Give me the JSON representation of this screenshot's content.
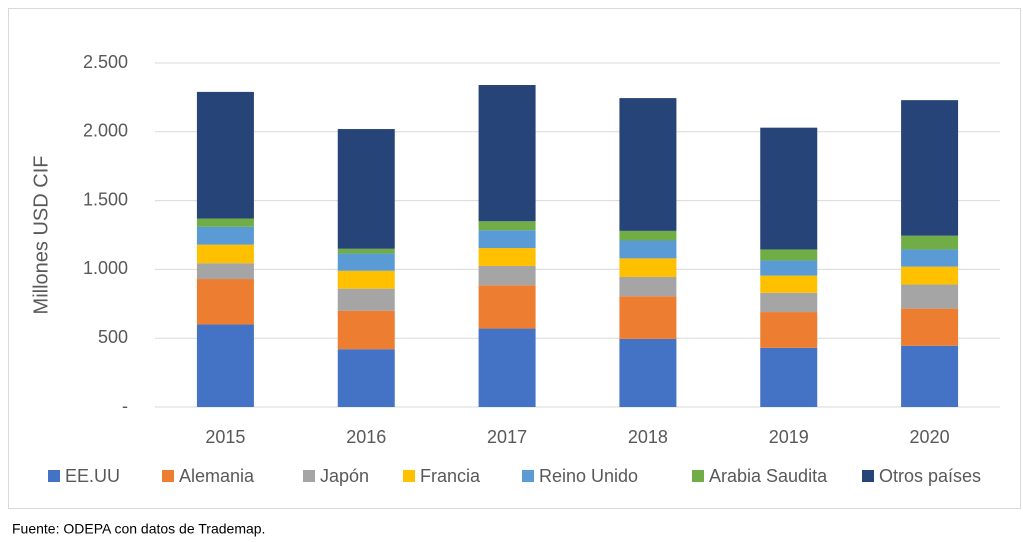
{
  "chart_data": {
    "type": "stacked_bar",
    "y_label": "Millones USD CIF",
    "categories": [
      "2015",
      "2016",
      "2017",
      "2018",
      "2019",
      "2020"
    ],
    "series": [
      {
        "name": "EE.UU",
        "color": "#4472c4",
        "values": [
          600,
          420,
          570,
          495,
          430,
          445
        ]
      },
      {
        "name": "Alemania",
        "color": "#ed7d31",
        "values": [
          330,
          280,
          315,
          310,
          260,
          270
        ]
      },
      {
        "name": "Japón",
        "color": "#a5a5a5",
        "values": [
          115,
          160,
          140,
          140,
          140,
          175
        ]
      },
      {
        "name": "Francia",
        "color": "#ffc000",
        "values": [
          135,
          130,
          130,
          135,
          125,
          130
        ]
      },
      {
        "name": "Reino Unido",
        "color": "#5b9bd5",
        "values": [
          130,
          125,
          130,
          130,
          110,
          125
        ]
      },
      {
        "name": "Arabia Saudita",
        "color": "#70ad47",
        "values": [
          60,
          35,
          65,
          70,
          80,
          100
        ]
      },
      {
        "name": "Otros países",
        "color": "#264478",
        "values": [
          920,
          870,
          990,
          965,
          885,
          985
        ]
      }
    ],
    "ylim": [
      0,
      2500
    ],
    "yticks": [
      {
        "value": 0,
        "label": "-"
      },
      500,
      {
        "value": 1000,
        "label": "1.000"
      },
      {
        "value": 1500,
        "label": "1.500"
      },
      {
        "value": 2000,
        "label": "2.000"
      },
      {
        "value": 2500,
        "label": "2.500"
      }
    ],
    "grid": true,
    "legend": "bottom",
    "source": "Fuente: ODEPA con datos de Trademap."
  }
}
